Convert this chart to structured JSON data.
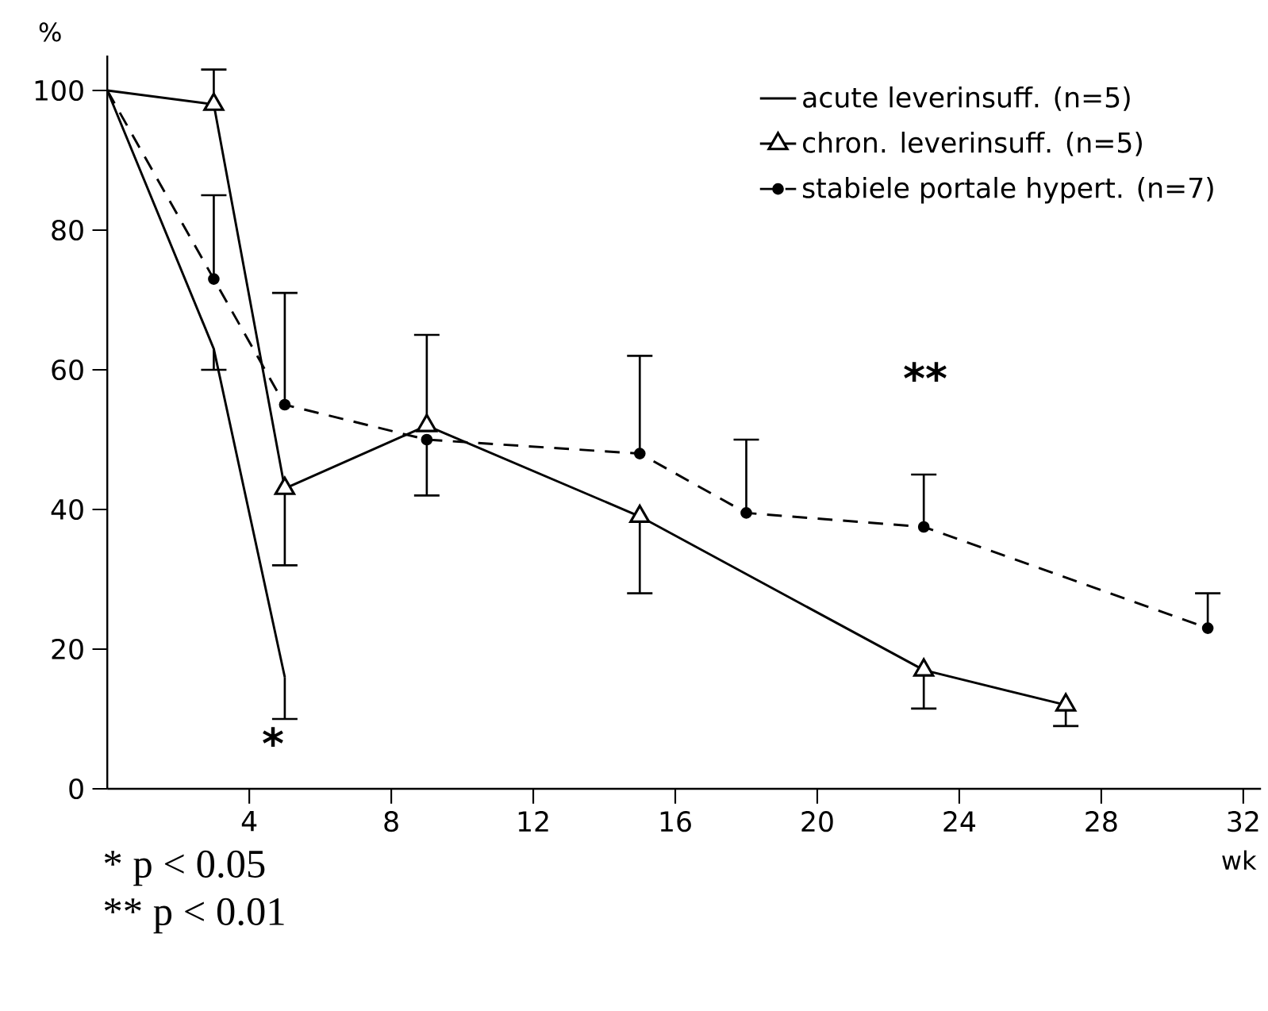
{
  "chart_data": {
    "type": "line",
    "ylabel": "%",
    "xlabel": "wk",
    "xlim": [
      0,
      32.5
    ],
    "ylim": [
      0,
      105
    ],
    "xticks": [
      4,
      8,
      12,
      16,
      20,
      24,
      28,
      32
    ],
    "yticks": [
      0,
      20,
      40,
      60,
      80,
      100
    ],
    "legend": "top right",
    "grid": false,
    "series": [
      {
        "name": "acute leverinsuff. (n=5)",
        "color": "#000000",
        "marker": "none",
        "line_style": "solid",
        "x": [
          0,
          3,
          5
        ],
        "values": [
          100,
          63,
          16
        ],
        "errors": [
          null,
          [
            60,
            63
          ],
          [
            10,
            16
          ]
        ]
      },
      {
        "name": "chron. leverinsuff. (n=5)",
        "color": "#000000",
        "marker": "triangle",
        "line_style": "solid",
        "x": [
          0,
          3,
          5,
          9,
          15,
          23,
          27
        ],
        "values": [
          100,
          98,
          43,
          52,
          39,
          17,
          12
        ],
        "errors": [
          null,
          [
            98,
            103
          ],
          [
            32,
            43
          ],
          [
            52,
            65
          ],
          [
            28,
            39
          ],
          [
            11.5,
            17
          ],
          [
            9,
            12
          ]
        ]
      },
      {
        "name": "stabiele portale hypert. (n=7)",
        "color": "#000000",
        "marker": "circle",
        "line_style": "dashed",
        "x": [
          0,
          3,
          5,
          9,
          15,
          18,
          23,
          31
        ],
        "values": [
          100,
          73,
          55,
          50,
          48,
          39.5,
          37.5,
          23
        ],
        "errors": [
          null,
          [
            73,
            85
          ],
          [
            55,
            71
          ],
          [
            42,
            50
          ],
          [
            48,
            62
          ],
          [
            39.5,
            50
          ],
          [
            37.5,
            45
          ],
          [
            23,
            28
          ]
        ]
      }
    ],
    "annotations": [
      "*",
      "**",
      "* p < 0.05",
      "** p < 0.01"
    ]
  }
}
